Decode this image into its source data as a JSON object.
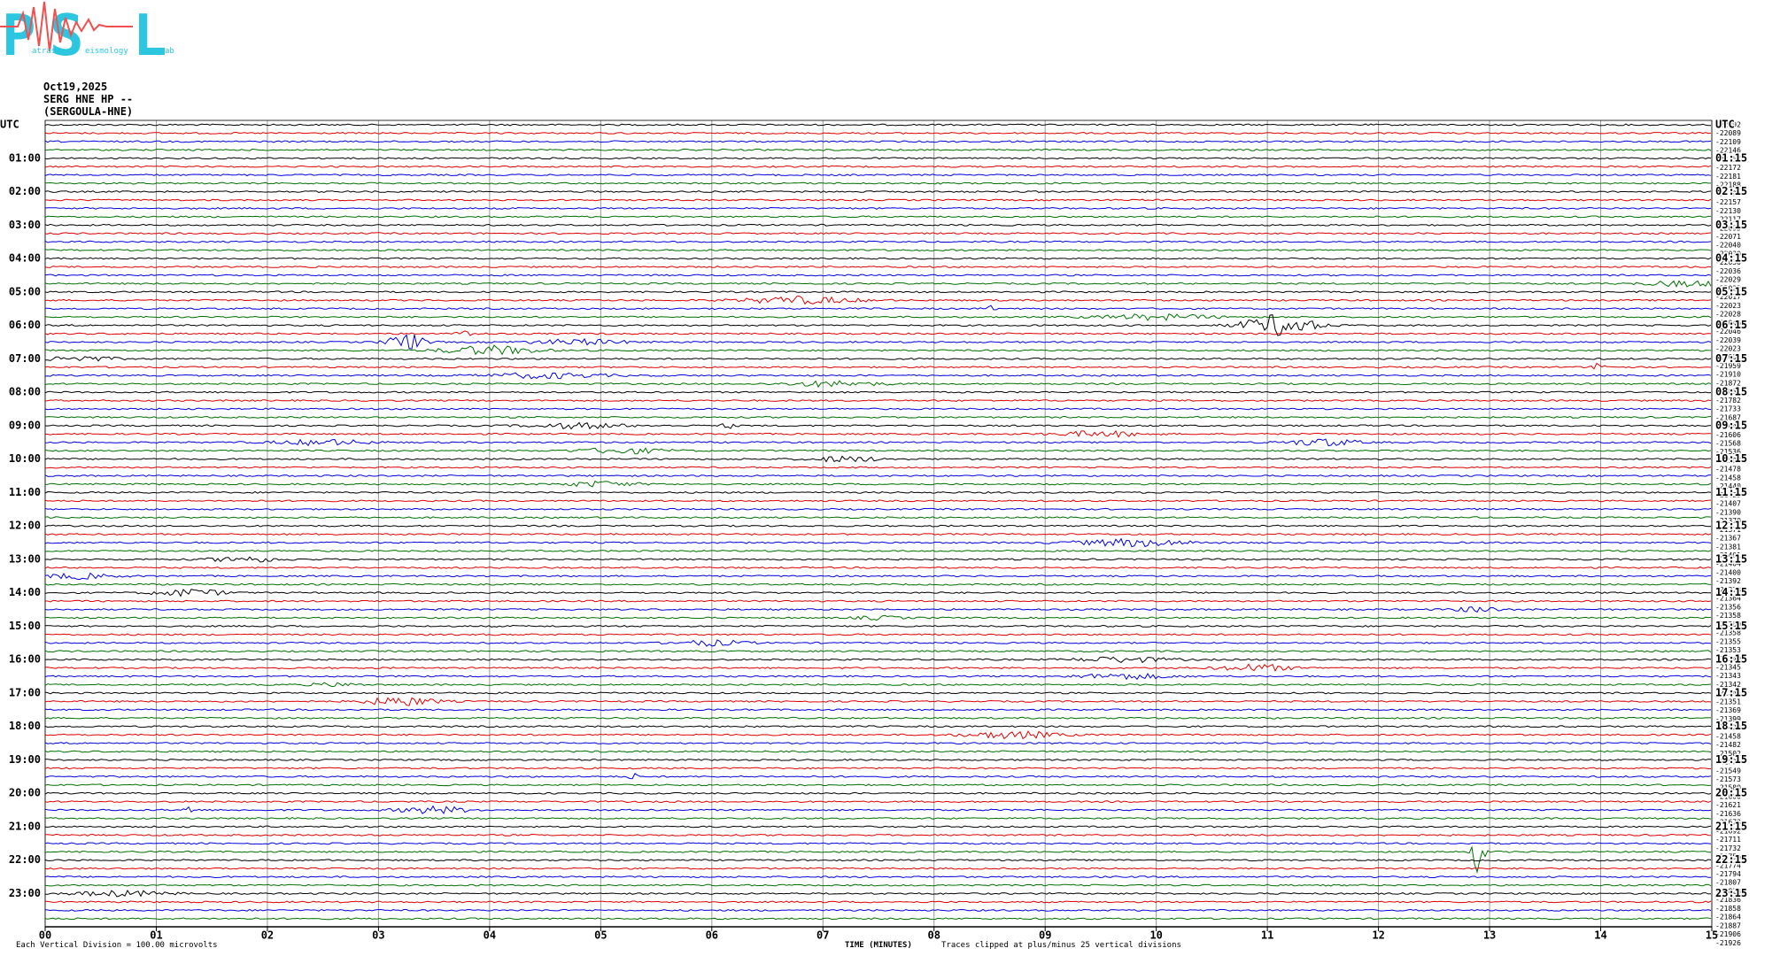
{
  "logo": {
    "big": [
      "P",
      "S",
      "L"
    ],
    "small": [
      "atras",
      "eismology",
      "ab"
    ]
  },
  "header": {
    "date": "Oct19,2025",
    "station": "SERG HNE HP --",
    "site": "(SERGOULA-HNE)"
  },
  "left_labels": [
    "UTC",
    "01:00",
    "02:00",
    "03:00",
    "04:00",
    "05:00",
    "06:00",
    "07:00",
    "08:00",
    "09:00",
    "10:00",
    "11:00",
    "12:00",
    "13:00",
    "14:00",
    "15:00",
    "16:00",
    "17:00",
    "18:00",
    "19:00",
    "20:00",
    "21:00",
    "22:00",
    "23:00"
  ],
  "right_labels": [
    "UTC",
    "01:15",
    "02:15",
    "03:15",
    "04:15",
    "05:15",
    "06:15",
    "07:15",
    "08:15",
    "09:15",
    "10:15",
    "11:15",
    "12:15",
    "13:15",
    "14:15",
    "15:15",
    "16:15",
    "17:15",
    "18:15",
    "19:15",
    "20:15",
    "21:15",
    "22:15",
    "23:15"
  ],
  "trace_offsets": [
    "-22092",
    "-22089",
    "-22109",
    "-22146",
    "-22157",
    "-22172",
    "-22181",
    "-22188",
    "-22191",
    "-22157",
    "-22130",
    "-22117",
    "-22095",
    "-22071",
    "-22040",
    "-22030",
    "-22030",
    "-22036",
    "-22029",
    "-22022",
    "-22017",
    "-22023",
    "-22028",
    "-22046",
    "-22046",
    "-22039",
    "-22023",
    "-22001",
    "-21959",
    "-21910",
    "-21872",
    "-21831",
    "-21782",
    "-21733",
    "-21687",
    "-21644",
    "-21606",
    "-21568",
    "-21536",
    "-21507",
    "-21478",
    "-21458",
    "-21440",
    "-21423",
    "-21407",
    "-21390",
    "-21370",
    "-21371",
    "-21367",
    "-21381",
    "-21401",
    "-21404",
    "-21400",
    "-21392",
    "-21378",
    "-21364",
    "-21356",
    "-21358",
    "-21360",
    "-21358",
    "-21355",
    "-21353",
    "-21349",
    "-21345",
    "-21343",
    "-21342",
    "-21345",
    "-21351",
    "-21369",
    "-21399",
    "-21429",
    "-21458",
    "-21482",
    "-21502",
    "-21529",
    "-21549",
    "-21573",
    "-21580",
    "-21600",
    "-21621",
    "-21636",
    "-21673",
    "-21692",
    "-21711",
    "-21732",
    "-21756",
    "-21774",
    "-21794",
    "-21807",
    "-21823",
    "-21836",
    "-21858",
    "-21864",
    "-21887",
    "-21906",
    "-21926"
  ],
  "x_labels": [
    "00",
    "01",
    "02",
    "03",
    "04",
    "05",
    "06",
    "07",
    "08",
    "09",
    "10",
    "11",
    "12",
    "13",
    "14",
    "15"
  ],
  "x_title": "TIME (MINUTES)",
  "footer": {
    "division": "Each Vertical Division =  100.00 microvolts",
    "clip": "Traces clipped at plus/minus 25 vertical divisions"
  }
}
